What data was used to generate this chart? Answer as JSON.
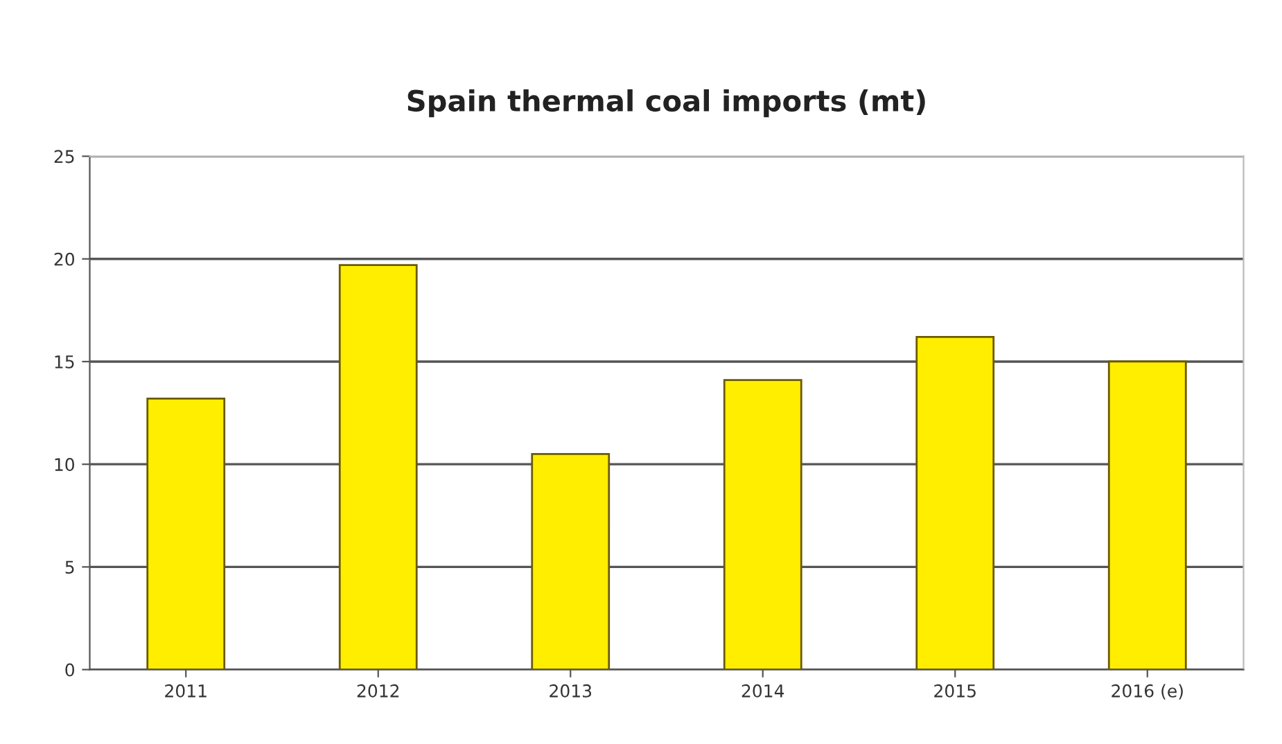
{
  "chart_data": {
    "type": "bar",
    "title": "Spain thermal coal imports (mt)",
    "categories": [
      "2011",
      "2012",
      "2013",
      "2014",
      "2015",
      "2016 (e)"
    ],
    "values": [
      13.2,
      19.7,
      10.5,
      14.1,
      16.2,
      15.0
    ],
    "color": "#ffee00",
    "ylim": [
      0,
      25
    ],
    "yticks": [
      0,
      5,
      10,
      15,
      20,
      25
    ],
    "grid": "y",
    "legend": false
  }
}
